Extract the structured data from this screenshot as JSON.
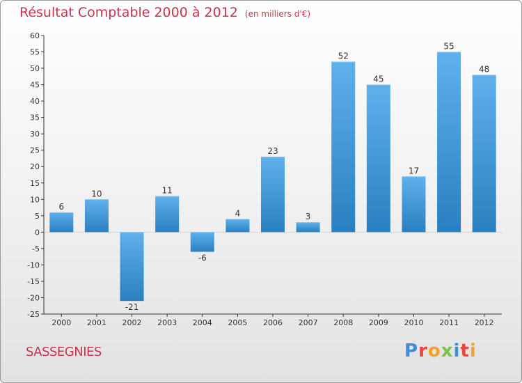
{
  "title": "Résultat Comptable 2000 à 2012",
  "unit": "(en milliers d'€)",
  "place": "SASSEGNIES",
  "brand": "Proxiti",
  "colors": {
    "title": "#c8344e",
    "bar_top": "#5fb1ec",
    "bar_bottom": "#2a7fc0",
    "axis": "#333333",
    "grid": "#cccccc"
  },
  "brand_letters": [
    {
      "char": "P",
      "color": "#3a8fd6"
    },
    {
      "char": "r",
      "color": "#e8463c"
    },
    {
      "char": "o",
      "color": "#f4a22a"
    },
    {
      "char": "x",
      "color": "#7cc142"
    },
    {
      "char": "i",
      "color": "#3a8fd6"
    },
    {
      "char": "t",
      "color": "#e8463c"
    },
    {
      "char": "i",
      "color": "#f4a22a"
    }
  ],
  "chart_data": {
    "type": "bar",
    "title": "Résultat Comptable 2000 à 2012",
    "subtitle": "(en milliers d'€)",
    "xlabel": "",
    "ylabel": "",
    "categories": [
      "2000",
      "2001",
      "2002",
      "2003",
      "2004",
      "2005",
      "2006",
      "2007",
      "2008",
      "2009",
      "2010",
      "2011",
      "2012"
    ],
    "values": [
      6,
      10,
      -21,
      11,
      -6,
      4,
      23,
      3,
      52,
      45,
      17,
      55,
      48
    ],
    "ylim": [
      -25,
      60
    ],
    "yticks": [
      -25,
      -20,
      -15,
      -10,
      -5,
      0,
      5,
      10,
      15,
      20,
      25,
      30,
      35,
      40,
      45,
      50,
      55,
      60
    ],
    "grid": false,
    "legend": "none"
  }
}
